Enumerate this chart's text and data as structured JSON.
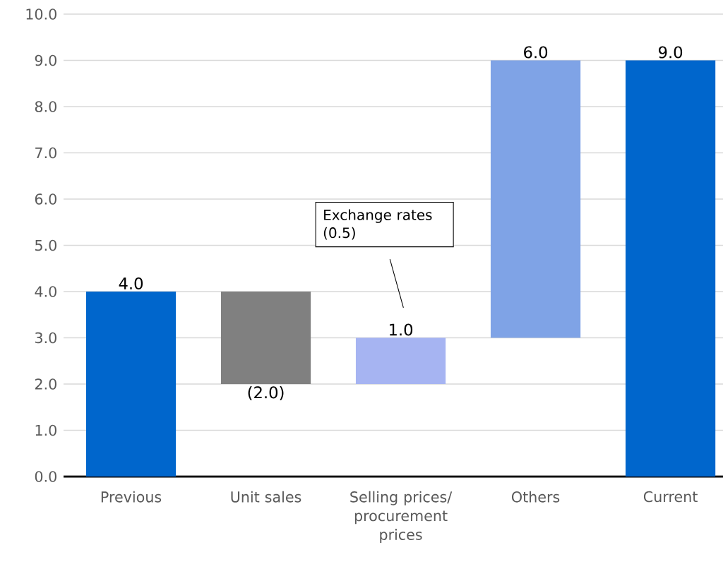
{
  "chart_data": {
    "type": "bar",
    "categories": [
      "Previous",
      "Unit sales",
      "Selling prices/ procurement prices",
      "Others",
      "Current"
    ],
    "values": [
      4.0,
      -2.0,
      1.0,
      6.0,
      9.0
    ],
    "base": [
      0,
      4.0,
      2.0,
      3.0,
      0
    ],
    "colors": [
      "#0066cc",
      "#808080",
      "#a6b4f2",
      "#7fa3e6",
      "#0066cc"
    ],
    "value_labels": [
      "4.0",
      "(2.0)",
      "1.0",
      "6.0",
      "9.0"
    ],
    "annotations": [
      "Exchange rates (0.5)"
    ],
    "ylim": [
      0,
      10
    ],
    "yticks": [
      {
        "value": 0,
        "label": "0.0"
      },
      {
        "value": 1,
        "label": "1.0"
      },
      {
        "value": 2,
        "label": "2.0"
      },
      {
        "value": 3,
        "label": "3.0"
      },
      {
        "value": 4,
        "label": "4.0"
      },
      {
        "value": 5,
        "label": "5.0"
      },
      {
        "value": 6,
        "label": "6.0"
      },
      {
        "value": 7,
        "label": "7.0"
      },
      {
        "value": 8,
        "label": "8.0"
      },
      {
        "value": 9,
        "label": "9.0"
      },
      {
        "value": 10,
        "label": "10.0"
      }
    ],
    "grid": "y"
  }
}
